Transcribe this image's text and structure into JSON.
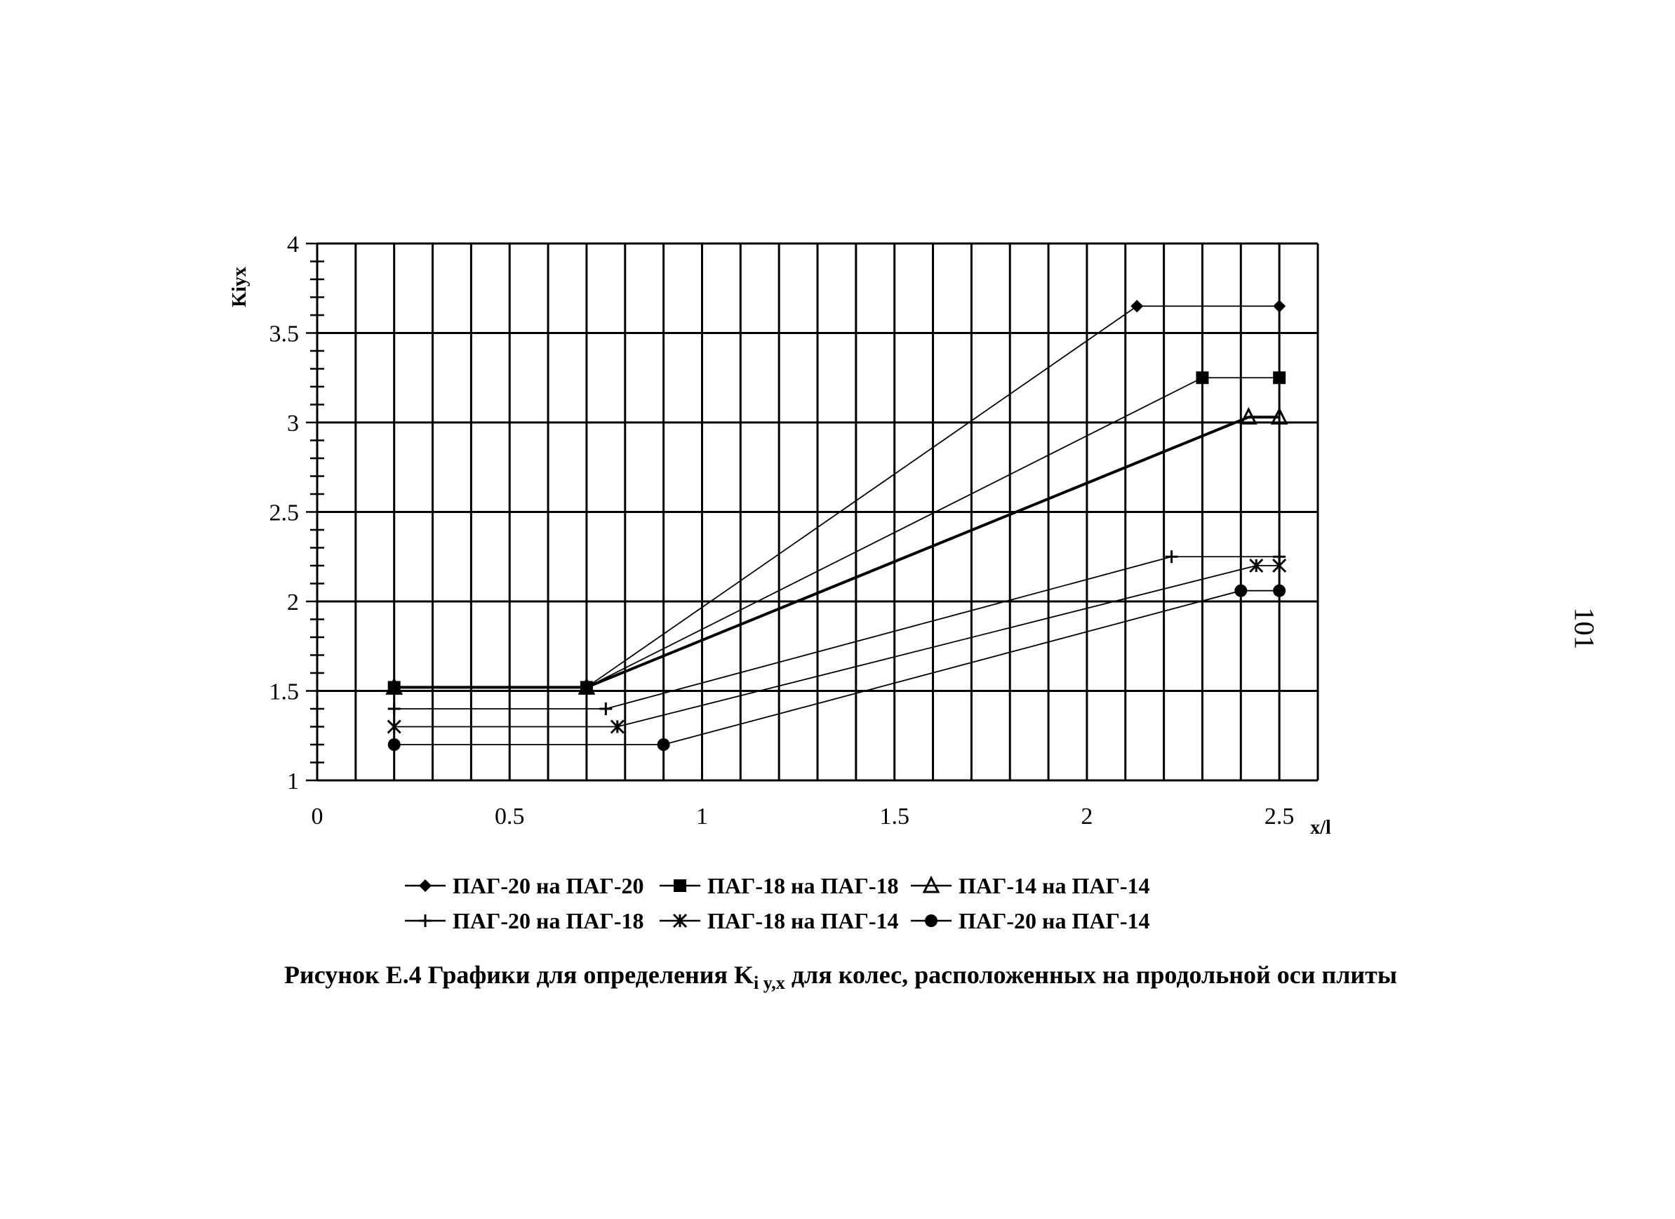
{
  "chart_data": {
    "type": "line",
    "title": "",
    "xlabel": "x/l",
    "ylabel": "Kiyx",
    "xlim": [
      0,
      2.6
    ],
    "ylim": [
      1,
      4
    ],
    "xticks": [
      "0",
      "0.5",
      "1",
      "1.5",
      "2",
      "2.5"
    ],
    "yticks": [
      "1",
      "1.5",
      "2",
      "2.5",
      "3",
      "3.5",
      "4"
    ],
    "grid": true,
    "legend_position": "bottom",
    "series": [
      {
        "name": "ПАГ-20 на ПАГ-20",
        "marker": "diamond",
        "x": [
          0.2,
          0.7,
          2.13,
          2.5
        ],
        "y": [
          1.52,
          1.52,
          3.65,
          3.65
        ]
      },
      {
        "name": "ПАГ-18 на  ПАГ-18",
        "marker": "square",
        "x": [
          0.2,
          0.7,
          2.3,
          2.5
        ],
        "y": [
          1.52,
          1.52,
          3.25,
          3.25
        ]
      },
      {
        "name": "ПАГ-14 на ПАГ-14",
        "marker": "triangle",
        "x": [
          0.2,
          0.7,
          2.42,
          2.5
        ],
        "y": [
          1.52,
          1.52,
          3.03,
          3.03
        ]
      },
      {
        "name": "ПАГ-20 на ПАГ-18",
        "marker": "plus",
        "x": [
          0.2,
          0.75,
          2.22,
          2.5
        ],
        "y": [
          1.4,
          1.4,
          2.25,
          2.25
        ]
      },
      {
        "name": "ПАГ-18 на ПАГ-14",
        "marker": "star",
        "x": [
          0.2,
          0.78,
          2.44,
          2.5
        ],
        "y": [
          1.3,
          1.3,
          2.2,
          2.2
        ]
      },
      {
        "name": "ПАГ-20 на ПАГ-14",
        "marker": "circle",
        "x": [
          0.2,
          0.9,
          2.4,
          2.5
        ],
        "y": [
          1.2,
          1.2,
          2.06,
          2.06
        ]
      }
    ]
  },
  "legend_labels": [
    "ПАГ-20 на ПАГ-20",
    "ПАГ-18 на  ПАГ-18",
    "ПАГ-14 на ПАГ-14",
    "ПАГ-20 на ПАГ-18",
    "ПАГ-18 на ПАГ-14",
    "ПАГ-20 на ПАГ-14"
  ],
  "caption": {
    "prefix": "Рисунок Е.4 Графики для определения K",
    "subscript": "i y,x",
    "suffix": " для колес, расположенных на продольной оси плиты"
  },
  "page_number": "101"
}
